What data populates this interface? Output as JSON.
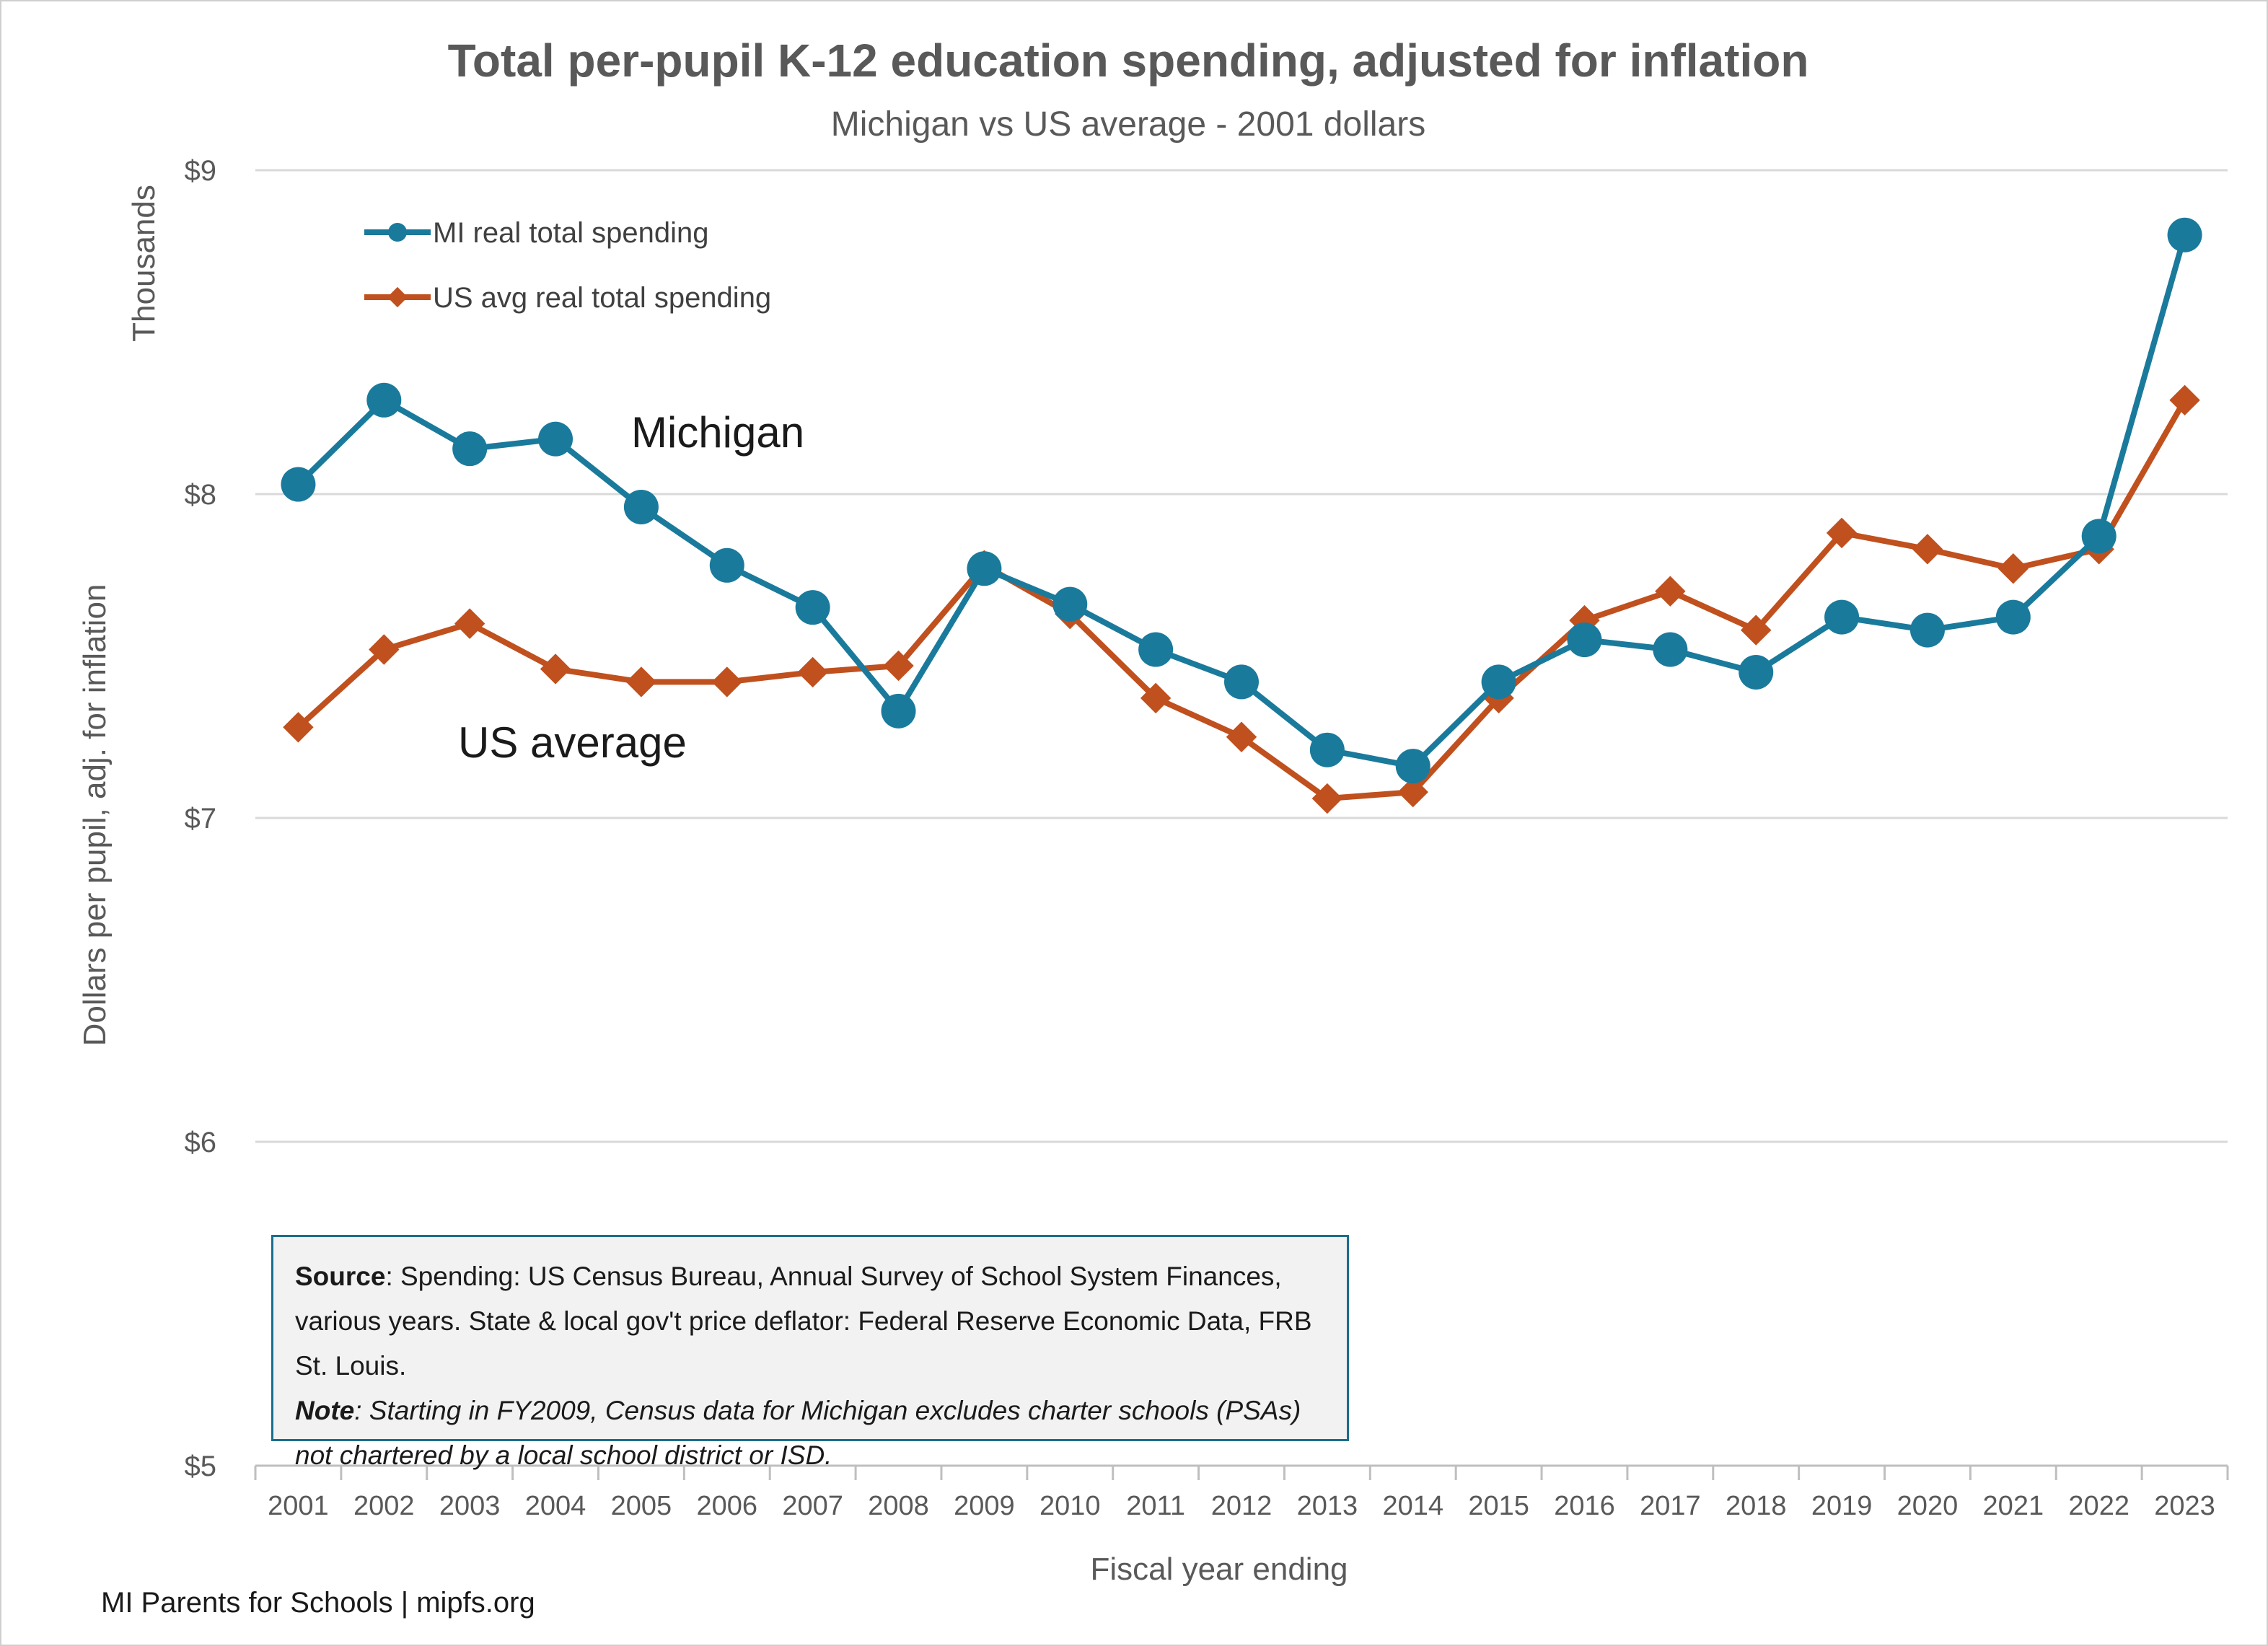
{
  "chart_data": {
    "type": "line",
    "title": "Total per-pupil K-12 education spending, adjusted for inflation",
    "subtitle": "Michigan vs US average - 2001 dollars",
    "xlabel": "Fiscal year ending",
    "ylabel": "Dollars per pupil, adj. for inflation",
    "yunit_label": "Thousands",
    "ylim": [
      5,
      9
    ],
    "yticks": [
      5,
      6,
      7,
      8,
      9
    ],
    "ytick_labels": [
      "$5",
      "$6",
      "$7",
      "$8",
      "$9"
    ],
    "grid": true,
    "legend_position": "top-left",
    "categories": [
      "2001",
      "2002",
      "2003",
      "2004",
      "2005",
      "2006",
      "2007",
      "2008",
      "2009",
      "2010",
      "2011",
      "2012",
      "2013",
      "2014",
      "2015",
      "2016",
      "2017",
      "2018",
      "2019",
      "2020",
      "2021",
      "2022",
      "2023"
    ],
    "series": [
      {
        "name": "MI real total spending",
        "annotation": "Michigan",
        "color": "#1a7a9c",
        "marker": "circle",
        "values": [
          8.03,
          8.29,
          8.14,
          8.17,
          7.96,
          7.78,
          7.65,
          7.33,
          7.77,
          7.66,
          7.52,
          7.42,
          7.21,
          7.16,
          7.42,
          7.55,
          7.52,
          7.45,
          7.62,
          7.58,
          7.62,
          7.87,
          8.8
        ]
      },
      {
        "name": "US avg real total spending",
        "annotation": "US average",
        "color": "#c0501e",
        "marker": "diamond",
        "values": [
          7.28,
          7.52,
          7.6,
          7.46,
          7.42,
          7.42,
          7.45,
          7.47,
          7.78,
          7.63,
          7.37,
          7.25,
          7.06,
          7.08,
          7.37,
          7.61,
          7.7,
          7.58,
          7.88,
          7.83,
          7.77,
          7.83,
          8.29
        ]
      }
    ]
  },
  "note_box": {
    "source_label": "Source",
    "source_text": ": Spending: US Census Bureau, Annual Survey of School System Finances, various years. State & local gov't price deflator: Federal Reserve Economic Data, FRB St. Louis.",
    "note_label": "Note",
    "note_text": ": Starting in FY2009, Census data for Michigan excludes charter schools (PSAs) not chartered by a local school district or ISD."
  },
  "footer": "MI Parents for Schools | mipfs.org"
}
